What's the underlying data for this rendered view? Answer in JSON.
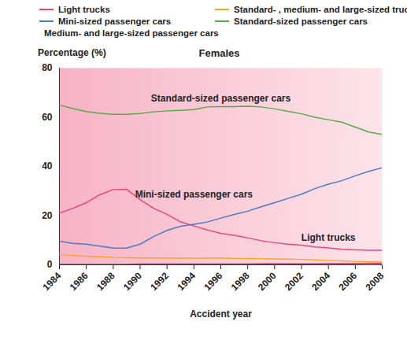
{
  "chart_data": {
    "type": "line",
    "title": "Females",
    "y_label": "Percentage (%)",
    "x_label": "Accident year",
    "x": [
      1984,
      1985,
      1986,
      1987,
      1988,
      1989,
      1990,
      1991,
      1992,
      1993,
      1994,
      1995,
      1996,
      1997,
      1998,
      1999,
      2000,
      2001,
      2002,
      2003,
      2004,
      2005,
      2006,
      2007,
      2008
    ],
    "series": [
      {
        "name": "Light trucks",
        "color": "#e8457e",
        "values": [
          21,
          23,
          25.3,
          28.5,
          30.6,
          30.7,
          26.5,
          23,
          20.5,
          17.5,
          15.8,
          14.2,
          12.8,
          12,
          11,
          9.8,
          9,
          8.4,
          8,
          7.3,
          6.9,
          6.3,
          6.1,
          5.9,
          5.9
        ]
      },
      {
        "name": "Standard- , medium- and large-sized trucks",
        "color": "#f5a623",
        "values": [
          4.2,
          3.8,
          3.5,
          3.3,
          3,
          2.9,
          2.8,
          2.8,
          2.7,
          2.7,
          2.7,
          2.7,
          2.7,
          2.6,
          2.6,
          2.5,
          2.4,
          2.3,
          2.2,
          2,
          1.8,
          1.6,
          1.4,
          1.2,
          1.1
        ]
      },
      {
        "name": "Mini-sized passenger cars",
        "color": "#4a7cc4",
        "values": [
          9.6,
          8.7,
          8.4,
          7.6,
          6.8,
          6.8,
          8.4,
          11.5,
          14,
          15.7,
          16.5,
          17.4,
          19,
          20.5,
          21.8,
          23.6,
          25.3,
          27,
          28.7,
          31,
          32.8,
          34.2,
          36.2,
          38,
          39.5
        ]
      },
      {
        "name": "Standard-sized passenger cars",
        "color": "#5aa84a",
        "values": [
          65,
          63.5,
          62.3,
          61.6,
          61.2,
          61.2,
          61.5,
          62.2,
          62.6,
          62.8,
          63.1,
          64.2,
          64.3,
          64.3,
          64.5,
          64.2,
          63.4,
          62.4,
          61.4,
          60,
          59,
          58,
          56,
          54,
          53
        ]
      },
      {
        "name": "Medium- and large-sized passenger cars",
        "color": "#d9245f",
        "values": [
          0.2,
          0.2,
          0.2,
          0.2,
          0.2,
          0.2,
          0.3,
          0.3,
          0.3,
          0.3,
          0.3,
          0.3,
          0.3,
          0.3,
          0.3,
          0.4,
          0.4,
          0.4,
          0.4,
          0.4,
          0.5,
          0.5,
          0.5,
          0.6,
          0.6
        ]
      }
    ],
    "annotations": [
      {
        "text": "Standard-sized passenger cars",
        "x": 1996,
        "y": 67.5
      },
      {
        "text": "Mini-sized passenger cars",
        "x": 1994,
        "y": 28.5
      },
      {
        "text": "Light trucks",
        "x": 2004,
        "y": 11
      }
    ],
    "xlim": [
      1984,
      2008
    ],
    "xticks": [
      1984,
      1986,
      1988,
      1990,
      1992,
      1994,
      1996,
      1998,
      2000,
      2002,
      2004,
      2006,
      2008
    ],
    "ylim": [
      0,
      80
    ],
    "yticks": [
      0,
      20,
      40,
      60,
      80
    ],
    "grid": false,
    "legend": "top"
  }
}
